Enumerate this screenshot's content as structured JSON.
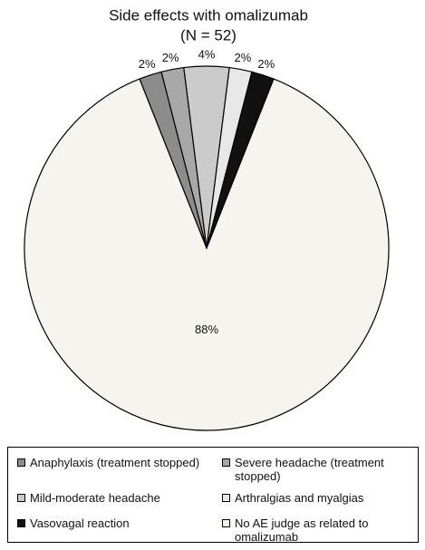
{
  "chart_data": {
    "type": "pie",
    "title": "Side effects with omalizumab",
    "subtitle": "(N = 52)",
    "categories": [
      "Anaphylaxis (treatment stopped)",
      "Severe headache (treatment stopped)",
      "Mild-moderate headache",
      "Arthralgias and myalgias",
      "Vasovagal reaction",
      "No AE judge as related to omalizumab"
    ],
    "values": [
      2,
      2,
      4,
      2,
      2,
      88
    ],
    "value_labels": [
      "2%",
      "2%",
      "4%",
      "2%",
      "2%",
      "88%"
    ],
    "colors": [
      "#8c8c8c",
      "#a8a8a8",
      "#cbcbcb",
      "#e8e8e8",
      "#111111",
      "#f6f4ef"
    ]
  }
}
